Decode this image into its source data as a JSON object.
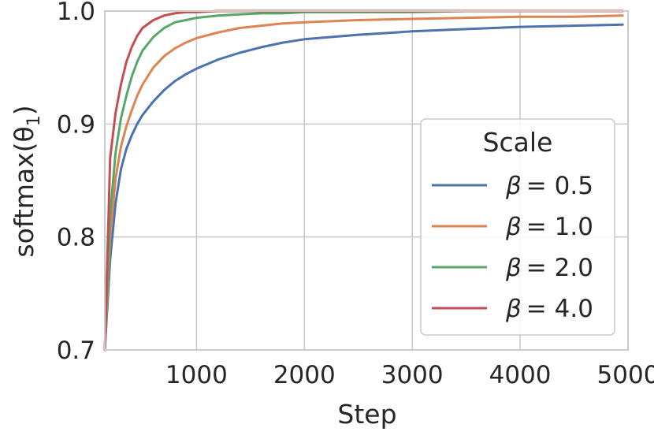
{
  "chart_data": {
    "type": "line",
    "xlabel": "Step",
    "ylabel": "softmax(θ",
    "ylabel_subscript": "1",
    "ylabel_close": ")",
    "xlim": [
      150,
      5000
    ],
    "ylim": [
      0.7,
      1.0
    ],
    "xticks": [
      1000,
      2000,
      3000,
      4000,
      5000
    ],
    "yticks": [
      0.7,
      0.8,
      0.9,
      1.0
    ],
    "xtick_labels": [
      "1000",
      "2000",
      "3000",
      "4000",
      "5000"
    ],
    "ytick_labels": [
      "0.7",
      "0.8",
      "0.9",
      "1.0"
    ],
    "grid": true,
    "legend": {
      "title": "Scale",
      "position": "center-right"
    },
    "x": [
      150,
      200,
      250,
      300,
      350,
      400,
      450,
      500,
      600,
      700,
      800,
      900,
      1000,
      1200,
      1400,
      1600,
      1800,
      2000,
      2500,
      3000,
      3500,
      4000,
      4500,
      4950
    ],
    "series": [
      {
        "name": "β = 0.5",
        "label_symbol": "β",
        "label_value": "= 0.5",
        "color": "#4c72b0",
        "values": [
          0.7,
          0.78,
          0.83,
          0.86,
          0.878,
          0.89,
          0.9,
          0.908,
          0.92,
          0.93,
          0.938,
          0.944,
          0.949,
          0.957,
          0.963,
          0.968,
          0.972,
          0.975,
          0.979,
          0.982,
          0.984,
          0.986,
          0.987,
          0.988
        ]
      },
      {
        "name": "β = 1.0",
        "label_symbol": "β",
        "label_value": "= 1.0",
        "color": "#dd8452",
        "values": [
          0.7,
          0.8,
          0.852,
          0.88,
          0.898,
          0.912,
          0.925,
          0.935,
          0.95,
          0.96,
          0.967,
          0.972,
          0.976,
          0.981,
          0.985,
          0.987,
          0.989,
          0.99,
          0.992,
          0.993,
          0.994,
          0.995,
          0.995,
          0.996
        ]
      },
      {
        "name": "β = 2.0",
        "label_symbol": "β",
        "label_value": "= 2.0",
        "color": "#55a868",
        "values": [
          0.7,
          0.82,
          0.875,
          0.905,
          0.925,
          0.942,
          0.955,
          0.965,
          0.977,
          0.985,
          0.99,
          0.992,
          0.994,
          0.996,
          0.997,
          0.998,
          0.998,
          0.999,
          0.999,
          0.999,
          1.0,
          1.0,
          1.0,
          1.0
        ]
      },
      {
        "name": "β = 4.0",
        "label_symbol": "β",
        "label_value": "= 4.0",
        "color": "#c44e52",
        "values": [
          0.7,
          0.87,
          0.91,
          0.935,
          0.955,
          0.968,
          0.978,
          0.985,
          0.992,
          0.996,
          0.998,
          0.999,
          0.999,
          1.0,
          1.0,
          1.0,
          1.0,
          1.0,
          1.0,
          1.0,
          1.0,
          1.0,
          1.0,
          1.0
        ]
      }
    ]
  }
}
